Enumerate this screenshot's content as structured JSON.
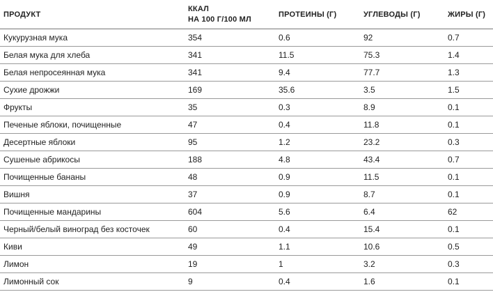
{
  "table": {
    "header": [
      "ПРОДУКТ",
      [
        "ККАЛ",
        "НА 100 Г/100 МЛ"
      ],
      "ПРОТЕИНЫ (Г)",
      "УГЛЕВОДЫ (Г)",
      "ЖИРЫ (Г)"
    ],
    "rows": [
      [
        "Кукурузная мука",
        "354",
        "0.6",
        "92",
        "0.7"
      ],
      [
        "Белая мука для хлеба",
        "341",
        "11.5",
        "75.3",
        "1.4"
      ],
      [
        "Белая непросеянная мука",
        "341",
        "9.4",
        "77.7",
        "1.3"
      ],
      [
        "Сухие дрожжи",
        "169",
        "35.6",
        "3.5",
        "1.5"
      ],
      [
        "Фрукты",
        "35",
        "0.3",
        "8.9",
        "0.1"
      ],
      [
        "Печеные яблоки, почищенные",
        "47",
        "0.4",
        "11.8",
        "0.1"
      ],
      [
        "Десертные яблоки",
        "95",
        "1.2",
        "23.2",
        "0.3"
      ],
      [
        "Сушеные абрикосы",
        "188",
        "4.8",
        "43.4",
        "0.7"
      ],
      [
        "Почищенные бананы",
        "48",
        "0.9",
        "11.5",
        "0.1"
      ],
      [
        "Вишня",
        "37",
        "0.9",
        "8.7",
        "0.1"
      ],
      [
        "Почищенные мандарины",
        "604",
        "5.6",
        "6.4",
        "62"
      ],
      [
        "Черный/белый виноград без косточек",
        "60",
        "0.4",
        "15.4",
        "0.1"
      ],
      [
        "Киви",
        "49",
        "1.1",
        "10.6",
        "0.5"
      ],
      [
        "Лимон",
        "19",
        "1",
        "3.2",
        "0.3"
      ],
      [
        "Лимонный сок",
        "9",
        "0.4",
        "1.6",
        "0.1"
      ]
    ]
  }
}
